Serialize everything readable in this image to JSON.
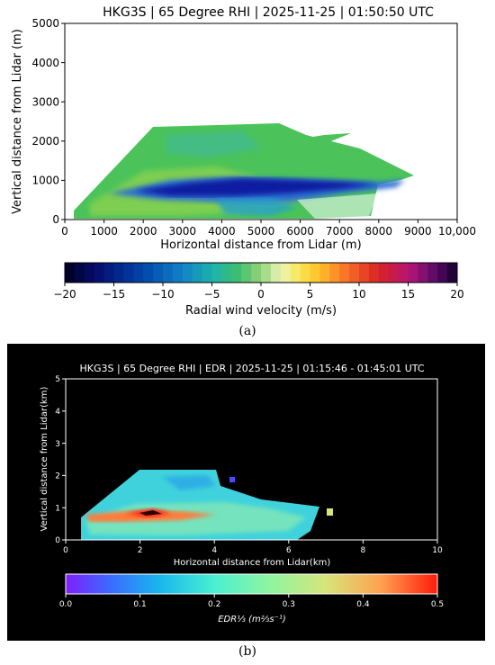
{
  "panel_a": {
    "title": "HKG3S | 65 Degree RHI | 2025-11-25 | 01:50:50 UTC",
    "xlabel": "Horizontal distance from Lidar (m)",
    "ylabel": "Vertical distance from Lidar (m)",
    "xticks": [
      "0",
      "1000",
      "2000",
      "3000",
      "4000",
      "5000",
      "6000",
      "7000",
      "8000",
      "9000",
      "10,000"
    ],
    "yticks": [
      "0",
      "1000",
      "2000",
      "3000",
      "4000",
      "5000"
    ],
    "colorbar_label": "Radial wind velocity (m/s)",
    "colorbar_ticks": [
      "−20",
      "−15",
      "−10",
      "−5",
      "0",
      "5",
      "10",
      "15",
      "20"
    ],
    "caption": "(a)"
  },
  "panel_b": {
    "title": "HKG3S | 65 Degree RHI | EDR | 2025-11-25 | 01:15:46 - 01:45:01 UTC",
    "xlabel": "Horizontal distance from Lidar(km)",
    "ylabel": "Vertical distance from Lidar(km)",
    "xticks": [
      "0",
      "2",
      "4",
      "6",
      "8",
      "10"
    ],
    "yticks": [
      "0",
      "1",
      "2",
      "3",
      "4",
      "5"
    ],
    "colorbar_label": "EDR⅓ (m⅔s⁻¹)",
    "colorbar_ticks": [
      "0.0",
      "0.1",
      "0.2",
      "0.3",
      "0.4",
      "0.5"
    ],
    "caption": "(b)"
  },
  "chart_data": [
    {
      "type": "heatmap",
      "title": "HKG3S | 65 Degree RHI | 2025-11-25 | 01:50:50 UTC",
      "xlabel": "Horizontal distance from Lidar (m)",
      "ylabel": "Vertical distance from Lidar (m)",
      "xlim": [
        0,
        10000
      ],
      "ylim": [
        0,
        5000
      ],
      "colorbar": {
        "label": "Radial wind velocity (m/s)",
        "range": [
          -20,
          20
        ],
        "discrete_bins": 40
      },
      "data_extent": {
        "x_max": 8700,
        "y_max": 2400
      },
      "features": [
        {
          "x": 2300,
          "y": 2300,
          "value": -8
        },
        {
          "x": 3500,
          "y": 1900,
          "value": -6
        },
        {
          "x": 3000,
          "y": 1100,
          "value": -13
        },
        {
          "x": 4000,
          "y": 900,
          "value": -18
        },
        {
          "x": 6000,
          "y": 800,
          "value": -19
        },
        {
          "x": 5000,
          "y": 400,
          "value": -9
        },
        {
          "x": 7500,
          "y": 700,
          "value": -9
        }
      ]
    },
    {
      "type": "heatmap",
      "title": "HKG3S | 65 Degree RHI | EDR | 2025-11-25 | 01:15:46 - 01:45:01 UTC",
      "xlabel": "Horizontal distance from Lidar(km)",
      "ylabel": "Vertical distance from Lidar(km)",
      "xlim": [
        0,
        10
      ],
      "ylim": [
        0,
        5
      ],
      "colorbar": {
        "label": "EDR1/3 (m2/3 s-1)",
        "range": [
          0.0,
          0.5
        ]
      },
      "data_extent": {
        "x_max": 7.2,
        "y_max": 2.1
      },
      "features": [
        {
          "x": 1.0,
          "y": 0.75,
          "value": 0.42
        },
        {
          "x": 2.2,
          "y": 0.75,
          "value": 0.5
        },
        {
          "x": 3.0,
          "y": 1.2,
          "value": 0.25
        },
        {
          "x": 4.5,
          "y": 0.6,
          "value": 0.3
        },
        {
          "x": 6.5,
          "y": 0.5,
          "value": 0.22
        }
      ]
    }
  ]
}
